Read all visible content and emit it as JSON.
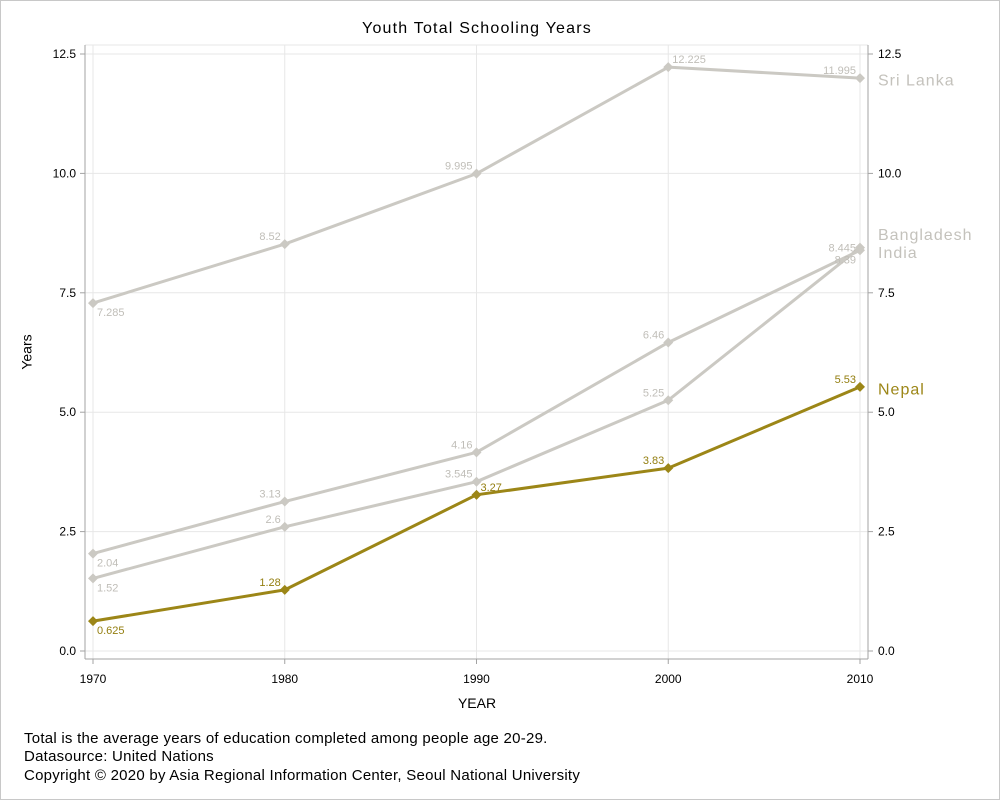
{
  "chart_data": {
    "type": "line",
    "title": "Youth Total Schooling Years",
    "xlabel": "YEAR",
    "ylabel": "Years",
    "x": [
      1970,
      1980,
      1990,
      2000,
      2010
    ],
    "xticks": [
      "1970",
      "1980",
      "1990",
      "2000",
      "2010"
    ],
    "xlim": [
      1970,
      2010
    ],
    "ylim": [
      0,
      12.5
    ],
    "yticks": [
      "0.0",
      "2.5",
      "5.0",
      "7.5",
      "10.0",
      "12.5"
    ],
    "y2ticks": [
      "0.0",
      "2.5",
      "5.0",
      "7.5",
      "10.0",
      "12.5"
    ],
    "grid": true,
    "legend": "right",
    "series": [
      {
        "name": "Sri Lanka",
        "values": [
          7.285,
          8.52,
          9.995,
          12.225,
          11.995
        ],
        "color": "#cbc9c3",
        "label_color": "#c0beb8"
      },
      {
        "name": "Bangladesh",
        "values": [
          1.52,
          2.6,
          3.545,
          5.25,
          8.445
        ],
        "color": "#cbc9c3",
        "label_color": "#c0beb8"
      },
      {
        "name": "India",
        "values": [
          2.04,
          3.13,
          4.16,
          6.46,
          8.39
        ],
        "color": "#cbc9c3",
        "label_color": "#c0beb8"
      },
      {
        "name": "Nepal",
        "values": [
          0.625,
          1.28,
          3.27,
          3.83,
          5.53
        ],
        "color": "#9c8617",
        "label_color": "#937e0f"
      }
    ]
  },
  "footnotes": [
    "Total is the average years of education completed among people age 20-29.",
    "Datasource: United Nations",
    "Copyright © 2020 by Asia Regional Information Center, Seoul National University"
  ]
}
